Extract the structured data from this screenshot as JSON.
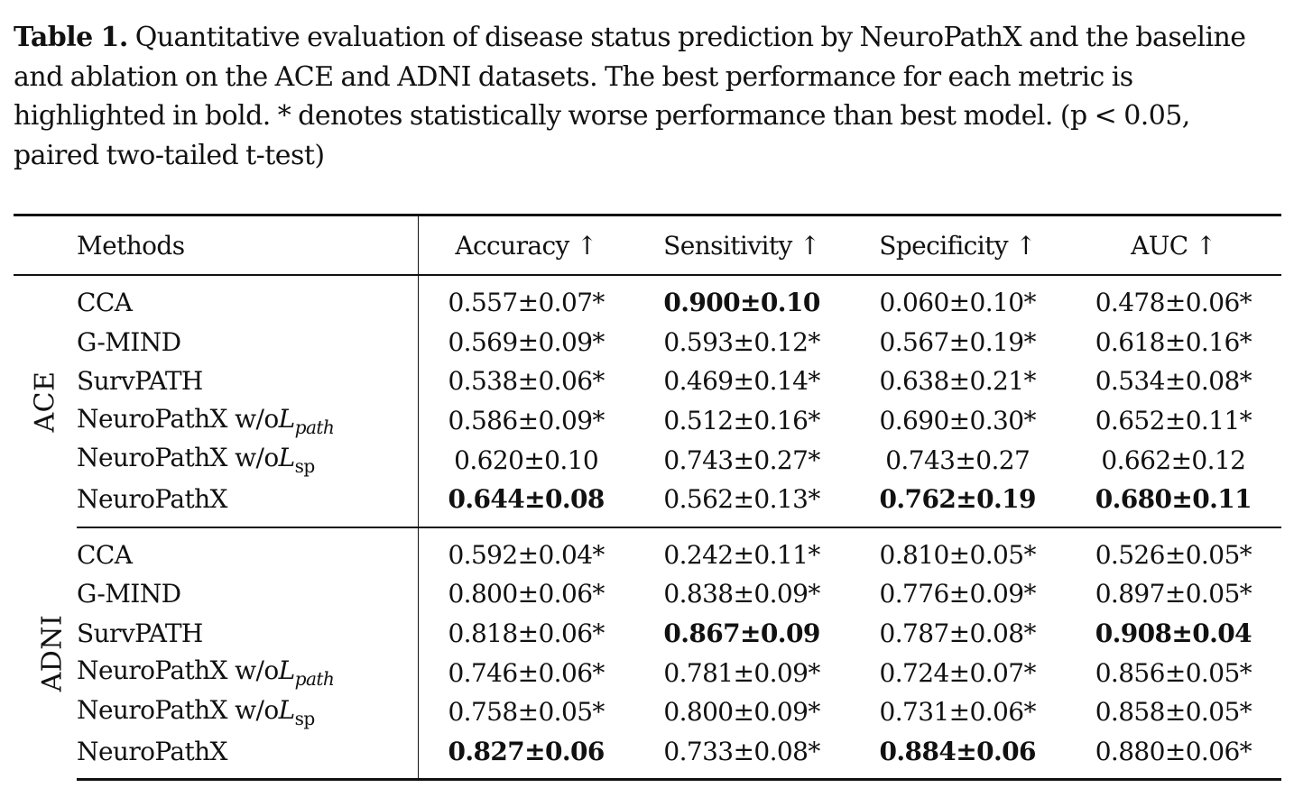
{
  "caption": {
    "label": "Table 1.",
    "text": "Quantitative evaluation of disease status prediction by NeuroPathX and the baseline and ablation on the ACE and ADNI datasets. The best performance for each metric is highlighted in bold. * denotes statistically worse performance than best model. (p < 0.05, paired two-tailed t-test)"
  },
  "table": {
    "headers": {
      "methods": "Methods",
      "accuracy": "Accuracy ↑",
      "sensitivity": "Sensitivity ↑",
      "specificity": "Specificity ↑",
      "auc": "AUC ↑"
    },
    "groups": [
      {
        "name": "ACE",
        "rows": [
          {
            "method": "CCA",
            "accuracy": "0.557±0.07*",
            "sensitivity": "0.900±0.10",
            "specificity": "0.060±0.10*",
            "auc": "0.478±0.06*"
          },
          {
            "method": "G-MIND",
            "accuracy": "0.569±0.09*",
            "sensitivity": "0.593±0.12*",
            "specificity": "0.567±0.19*",
            "auc": "0.618±0.16*"
          },
          {
            "method": "SurvPATH",
            "accuracy": "0.538±0.06*",
            "sensitivity": "0.469±0.14*",
            "specificity": "0.638±0.21*",
            "auc": "0.534±0.08*"
          },
          {
            "method_prefix": "NeuroPathX w/o",
            "method_loss": "L",
            "method_sub": "path",
            "accuracy": "0.586±0.09*",
            "sensitivity": "0.512±0.16*",
            "specificity": "0.690±0.30*",
            "auc": "0.652±0.11*"
          },
          {
            "method_prefix": "NeuroPathX w/o",
            "method_loss": "L",
            "method_sub": "sp",
            "accuracy": "0.620±0.10",
            "sensitivity": "0.743±0.27*",
            "specificity": "0.743±0.27",
            "auc": "0.662±0.12"
          },
          {
            "method": "NeuroPathX",
            "accuracy": "0.644±0.08",
            "sensitivity": "0.562±0.13*",
            "specificity": "0.762±0.19",
            "auc": "0.680±0.11"
          }
        ]
      },
      {
        "name": "ADNI",
        "rows": [
          {
            "method": "CCA",
            "accuracy": "0.592±0.04*",
            "sensitivity": "0.242±0.11*",
            "specificity": "0.810±0.05*",
            "auc": "0.526±0.05*"
          },
          {
            "method": "G-MIND",
            "accuracy": "0.800±0.06*",
            "sensitivity": "0.838±0.09*",
            "specificity": "0.776±0.09*",
            "auc": "0.897±0.05*"
          },
          {
            "method": "SurvPATH",
            "accuracy": "0.818±0.06*",
            "sensitivity": "0.867±0.09",
            "specificity": "0.787±0.08*",
            "auc": "0.908±0.04"
          },
          {
            "method_prefix": "NeuroPathX w/o",
            "method_loss": "L",
            "method_sub": "path",
            "accuracy": "0.746±0.06*",
            "sensitivity": "0.781±0.09*",
            "specificity": "0.724±0.07*",
            "auc": "0.856±0.05*"
          },
          {
            "method_prefix": "NeuroPathX w/o",
            "method_loss": "L",
            "method_sub": "sp",
            "accuracy": "0.758±0.05*",
            "sensitivity": "0.800±0.09*",
            "specificity": "0.731±0.06*",
            "auc": "0.858±0.05*"
          },
          {
            "method": "NeuroPathX",
            "accuracy": "0.827±0.06",
            "sensitivity": "0.733±0.08*",
            "specificity": "0.884±0.06",
            "auc": "0.880±0.06*"
          }
        ]
      }
    ]
  }
}
